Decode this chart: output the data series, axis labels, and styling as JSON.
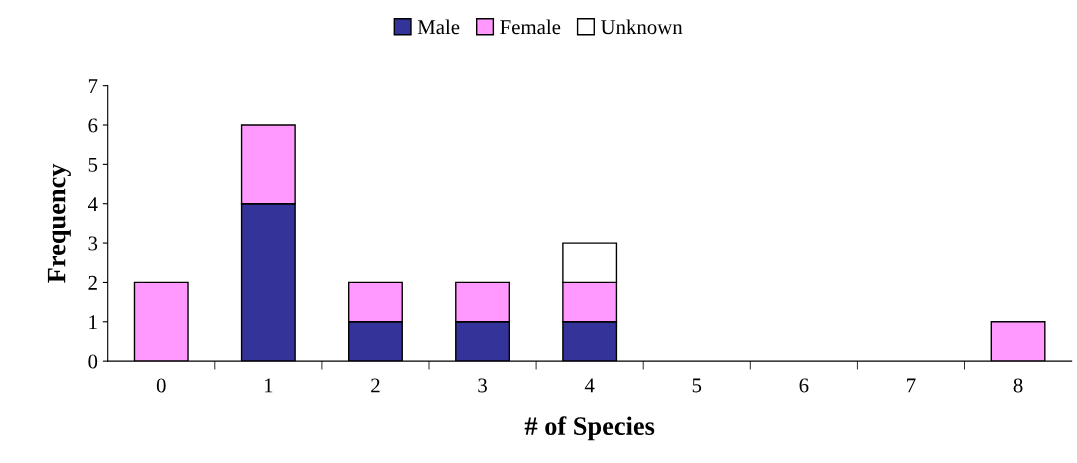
{
  "chart_data": {
    "type": "bar",
    "stacked": true,
    "xlabel": "# of Species",
    "ylabel": "Frequency",
    "categories": [
      "0",
      "1",
      "2",
      "3",
      "4",
      "5",
      "6",
      "7",
      "8"
    ],
    "series": [
      {
        "name": "Male",
        "color": "#333399",
        "values": [
          0,
          4,
          1,
          1,
          1,
          0,
          0,
          0,
          0
        ]
      },
      {
        "name": "Female",
        "color": "#ff99ff",
        "values": [
          2,
          2,
          1,
          1,
          1,
          0,
          0,
          0,
          1
        ]
      },
      {
        "name": "Unknown",
        "color": "#ffffff",
        "values": [
          0,
          0,
          0,
          0,
          1,
          0,
          0,
          0,
          0
        ]
      }
    ],
    "ylim": [
      0,
      7
    ],
    "yticks": [
      0,
      1,
      2,
      3,
      4,
      5,
      6,
      7
    ],
    "grid": false,
    "legend": "top"
  }
}
